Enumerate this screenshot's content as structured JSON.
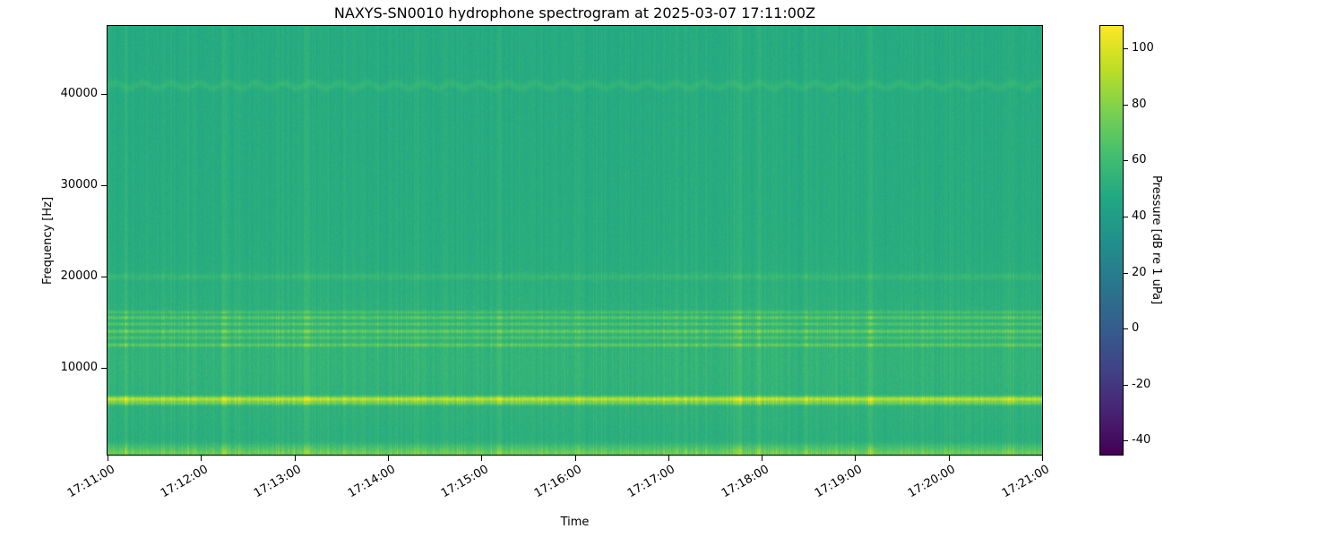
{
  "figure": {
    "background_color": "#ffffff",
    "text_color": "#000000"
  },
  "chart_data": {
    "type": "heatmap",
    "title": "NAXYS-SN0010 hydrophone spectrogram at 2025-03-07 17:11:00Z",
    "xlabel": "Time",
    "ylabel": "Frequency [Hz]",
    "x_tick_labels": [
      "17:11:00",
      "17:12:00",
      "17:13:00",
      "17:14:00",
      "17:15:00",
      "17:16:00",
      "17:17:00",
      "17:18:00",
      "17:19:00",
      "17:20:00",
      "17:21:00"
    ],
    "x_range_seconds": [
      0,
      600
    ],
    "y_tick_values": [
      10000,
      20000,
      30000,
      40000
    ],
    "y_range_hz": [
      500,
      47500
    ],
    "grid": false,
    "colorbar": {
      "label": "Pressure [dB re 1 uPa]",
      "tick_values": [
        100,
        80,
        60,
        40,
        20,
        0,
        -20,
        -40
      ],
      "vmin_db": -45,
      "vmax_db": 108,
      "colormap": "viridis",
      "colormap_stops": [
        "#440154",
        "#482475",
        "#414487",
        "#355f8d",
        "#2a788e",
        "#21918c",
        "#22a884",
        "#44bf70",
        "#7ad151",
        "#bddf26",
        "#fde725"
      ]
    },
    "spectrogram_model": {
      "background_level_db": 50,
      "background_tilt_db": -2,
      "pixel_noise_db": 2.2,
      "striation_max_db": 14,
      "horizontal_bands": [
        {
          "freq_hz": 6550,
          "width_hz": 200,
          "amp_db": 38
        },
        {
          "freq_hz": 6100,
          "width_hz": 150,
          "amp_db": 16
        },
        {
          "freq_hz": 12500,
          "width_hz": 130,
          "amp_db": 14
        },
        {
          "freq_hz": 13300,
          "width_hz": 120,
          "amp_db": 10
        },
        {
          "freq_hz": 14000,
          "width_hz": 140,
          "amp_db": 16
        },
        {
          "freq_hz": 14800,
          "width_hz": 120,
          "amp_db": 12
        },
        {
          "freq_hz": 15500,
          "width_hz": 130,
          "amp_db": 14
        },
        {
          "freq_hz": 16100,
          "width_hz": 120,
          "amp_db": 9
        },
        {
          "freq_hz": 20000,
          "width_hz": 250,
          "amp_db": 5
        },
        {
          "freq_hz": 11000,
          "width_hz": 5000,
          "amp_db": 3.5
        },
        {
          "freq_hz": 600,
          "width_hz": 350,
          "amp_db": 18
        },
        {
          "freq_hz": 1300,
          "width_hz": 300,
          "amp_db": 7
        },
        {
          "freq_hz": 41000,
          "width_hz": 300,
          "amp_db": 6,
          "wobble_amp_hz": 260,
          "wobble_period_s": 18
        }
      ],
      "vertical_events": [
        {
          "t_s": 12,
          "amp_db": 10,
          "width_s": 3
        },
        {
          "t_s": 75,
          "amp_db": 12,
          "width_s": 4
        },
        {
          "t_s": 128,
          "amp_db": 16,
          "width_s": 5
        },
        {
          "t_s": 152,
          "amp_db": 9,
          "width_s": 3
        },
        {
          "t_s": 218,
          "amp_db": 8,
          "width_s": 3
        },
        {
          "t_s": 252,
          "amp_db": 11,
          "width_s": 4
        },
        {
          "t_s": 302,
          "amp_db": 10,
          "width_s": 3
        },
        {
          "t_s": 365,
          "amp_db": 9,
          "width_s": 3
        },
        {
          "t_s": 405,
          "amp_db": 15,
          "width_s": 6
        },
        {
          "t_s": 418,
          "amp_db": 14,
          "width_s": 4
        },
        {
          "t_s": 448,
          "amp_db": 9,
          "width_s": 3
        },
        {
          "t_s": 490,
          "amp_db": 16,
          "width_s": 5
        },
        {
          "t_s": 523,
          "amp_db": 8,
          "width_s": 3
        },
        {
          "t_s": 578,
          "amp_db": 10,
          "width_s": 3
        }
      ]
    }
  }
}
